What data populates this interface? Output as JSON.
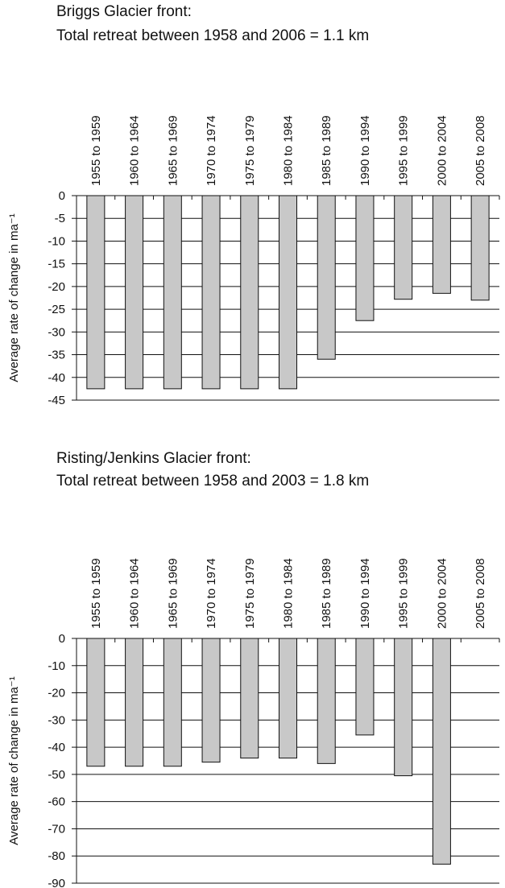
{
  "chart_data": [
    {
      "type": "bar",
      "title": "Briggs Glacier front:",
      "subtitle": "Total retreat between 1958 and 2006 = 1.1 km",
      "y_label": "Average rate of change in ma⁻¹",
      "categories": [
        "1955 to 1959",
        "1960 to 1964",
        "1965 to 1969",
        "1970 to 1974",
        "1975 to 1979",
        "1980 to 1984",
        "1985 to 1989",
        "1990 to 1994",
        "1995 to 1999",
        "2000 to 2004",
        "2005 to 2008"
      ],
      "values": [
        -42.5,
        -42.5,
        -42.5,
        -42.5,
        -42.5,
        -42.5,
        -36,
        -27.5,
        -22.8,
        -21.5,
        -23
      ],
      "color": "#c8c8c8",
      "ylim": [
        -45,
        0
      ],
      "yticks": [
        0,
        -5,
        -10,
        -15,
        -20,
        -25,
        -30,
        -35,
        -40,
        -45
      ],
      "grid": true
    },
    {
      "type": "bar",
      "title": "Risting/Jenkins Glacier front:",
      "subtitle": "Total retreat between 1958 and 2003 = 1.8 km",
      "y_label": "Average rate of change in ma⁻¹",
      "categories": [
        "1955 to 1959",
        "1960 to 1964",
        "1965 to 1969",
        "1970 to 1974",
        "1975 to 1979",
        "1980 to 1984",
        "1985 to 1989",
        "1990 to 1994",
        "1995 to 1999",
        "2000 to 2004",
        "2005 to 2008"
      ],
      "values": [
        -47,
        -47,
        -47,
        -45.5,
        -44,
        -44,
        -46,
        -35.5,
        -50.5,
        -83,
        null
      ],
      "color": "#c8c8c8",
      "ylim": [
        -90,
        0
      ],
      "yticks": [
        0,
        -10,
        -20,
        -30,
        -40,
        -50,
        -60,
        -70,
        -80,
        -90
      ],
      "grid": true
    }
  ]
}
